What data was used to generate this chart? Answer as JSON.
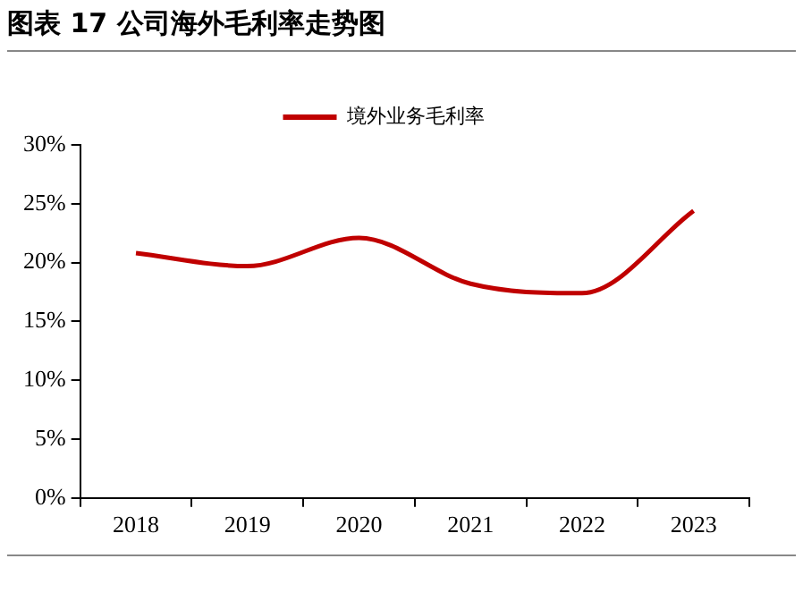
{
  "chart_data": {
    "type": "line",
    "title": "图表 17 公司海外毛利率走势图",
    "categories": [
      "2018",
      "2019",
      "2020",
      "2021",
      "2022",
      "2023"
    ],
    "series": [
      {
        "name": "境外业务毛利率",
        "color": "#c00000",
        "values": [
          20.8,
          19.7,
          22.1,
          18.2,
          17.4,
          24.4
        ]
      }
    ],
    "ylim": [
      0,
      30
    ],
    "yticks": [
      {
        "value": 0,
        "label": "0%"
      },
      {
        "value": 5,
        "label": "5%"
      },
      {
        "value": 10,
        "label": "10%"
      },
      {
        "value": 15,
        "label": "15%"
      },
      {
        "value": 20,
        "label": "20%"
      },
      {
        "value": 25,
        "label": "25%"
      },
      {
        "value": 30,
        "label": "30%"
      }
    ],
    "grid": false,
    "legend": "top",
    "marker": "none",
    "line_style": "solid"
  }
}
